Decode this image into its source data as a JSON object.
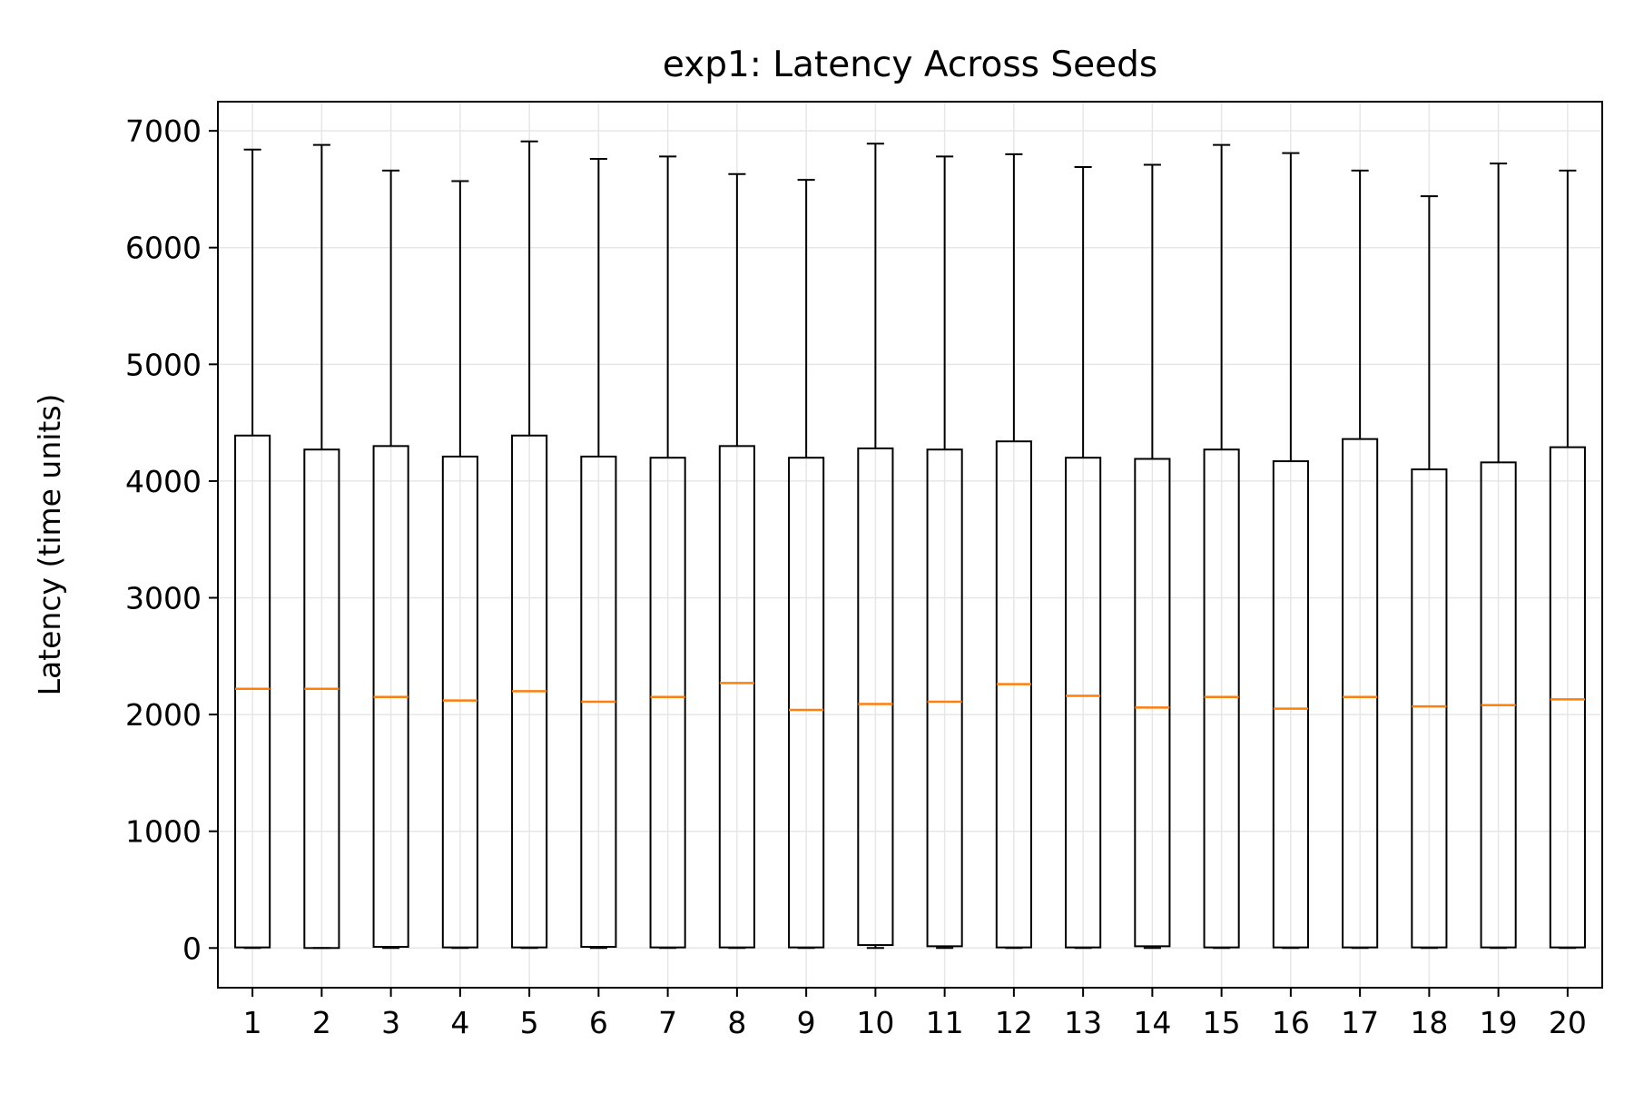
{
  "chart_data": {
    "type": "box",
    "title": "exp1: Latency Across Seeds",
    "xlabel": "",
    "ylabel": "Latency (time units)",
    "categories": [
      "1",
      "2",
      "3",
      "4",
      "5",
      "6",
      "7",
      "8",
      "9",
      "10",
      "11",
      "12",
      "13",
      "14",
      "15",
      "16",
      "17",
      "18",
      "19",
      "20"
    ],
    "ylim": [
      -340,
      7250
    ],
    "yticks": [
      0,
      1000,
      2000,
      3000,
      4000,
      5000,
      6000,
      7000
    ],
    "grid": true,
    "legend": "none",
    "colors": {
      "box": "#000000",
      "median": "#ff7f0e",
      "grid": "#e6e6e6"
    },
    "boxes": [
      {
        "category": "1",
        "whisker_low": 0,
        "q1": 5,
        "median": 2220,
        "q3": 4390,
        "whisker_high": 6840
      },
      {
        "category": "2",
        "whisker_low": 0,
        "q1": 0,
        "median": 2220,
        "q3": 4270,
        "whisker_high": 6880
      },
      {
        "category": "3",
        "whisker_low": 0,
        "q1": 10,
        "median": 2150,
        "q3": 4300,
        "whisker_high": 6660
      },
      {
        "category": "4",
        "whisker_low": 0,
        "q1": 5,
        "median": 2120,
        "q3": 4210,
        "whisker_high": 6570
      },
      {
        "category": "5",
        "whisker_low": 0,
        "q1": 5,
        "median": 2200,
        "q3": 4390,
        "whisker_high": 6910
      },
      {
        "category": "6",
        "whisker_low": 0,
        "q1": 10,
        "median": 2110,
        "q3": 4210,
        "whisker_high": 6760
      },
      {
        "category": "7",
        "whisker_low": 0,
        "q1": 5,
        "median": 2150,
        "q3": 4200,
        "whisker_high": 6780
      },
      {
        "category": "8",
        "whisker_low": 0,
        "q1": 5,
        "median": 2270,
        "q3": 4300,
        "whisker_high": 6630
      },
      {
        "category": "9",
        "whisker_low": 0,
        "q1": 5,
        "median": 2040,
        "q3": 4200,
        "whisker_high": 6580
      },
      {
        "category": "10",
        "whisker_low": 0,
        "q1": 25,
        "median": 2090,
        "q3": 4280,
        "whisker_high": 6890
      },
      {
        "category": "11",
        "whisker_low": 0,
        "q1": 15,
        "median": 2110,
        "q3": 4270,
        "whisker_high": 6780
      },
      {
        "category": "12",
        "whisker_low": 0,
        "q1": 5,
        "median": 2260,
        "q3": 4340,
        "whisker_high": 6800
      },
      {
        "category": "13",
        "whisker_low": 0,
        "q1": 5,
        "median": 2160,
        "q3": 4200,
        "whisker_high": 6690
      },
      {
        "category": "14",
        "whisker_low": 0,
        "q1": 15,
        "median": 2060,
        "q3": 4190,
        "whisker_high": 6710
      },
      {
        "category": "15",
        "whisker_low": 0,
        "q1": 5,
        "median": 2150,
        "q3": 4270,
        "whisker_high": 6880
      },
      {
        "category": "16",
        "whisker_low": 0,
        "q1": 5,
        "median": 2050,
        "q3": 4170,
        "whisker_high": 6810
      },
      {
        "category": "17",
        "whisker_low": 0,
        "q1": 5,
        "median": 2150,
        "q3": 4360,
        "whisker_high": 6660
      },
      {
        "category": "18",
        "whisker_low": 0,
        "q1": 5,
        "median": 2070,
        "q3": 4100,
        "whisker_high": 6440
      },
      {
        "category": "19",
        "whisker_low": 0,
        "q1": 5,
        "median": 2080,
        "q3": 4160,
        "whisker_high": 6720
      },
      {
        "category": "20",
        "whisker_low": 0,
        "q1": 5,
        "median": 2130,
        "q3": 4290,
        "whisker_high": 6660
      }
    ]
  }
}
